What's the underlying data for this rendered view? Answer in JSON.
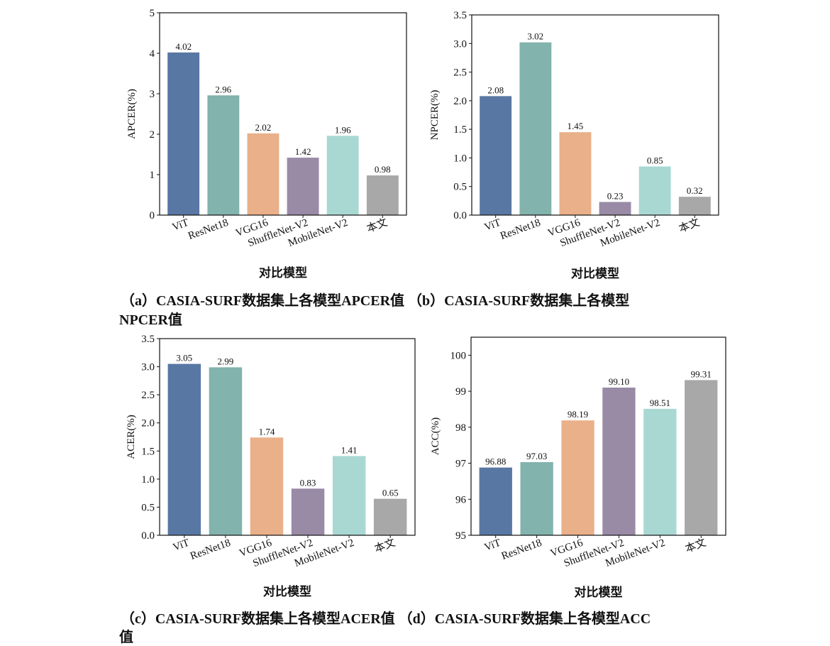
{
  "chart_data": [
    {
      "type": "bar",
      "categories": [
        "ViT",
        "ResNet18",
        "VGG16",
        "ShuffleNet-V2",
        "MobileNet-V2",
        "本文"
      ],
      "values": [
        4.02,
        2.96,
        2.02,
        1.42,
        1.96,
        0.98
      ],
      "value_labels": [
        "4.02",
        "2.96",
        "2.02",
        "1.42",
        "1.96",
        "0.98"
      ],
      "ylabel": "APCER(%)",
      "xlabel": "对比模型",
      "ylim": [
        0,
        5
      ],
      "yticks": [
        "0",
        "1",
        "2",
        "3",
        "4",
        "5"
      ],
      "grid": false
    },
    {
      "type": "bar",
      "categories": [
        "ViT",
        "ResNet18",
        "VGG16",
        "ShuffleNet-V2",
        "MobileNet-V2",
        "本文"
      ],
      "values": [
        2.08,
        3.02,
        1.45,
        0.23,
        0.85,
        0.32
      ],
      "value_labels": [
        "2.08",
        "3.02",
        "1.45",
        "0.23",
        "0.85",
        "0.32"
      ],
      "ylabel": "NPCER(%)",
      "xlabel": "对比模型",
      "ylim": [
        0,
        3.5
      ],
      "yticks": [
        "0.0",
        "0.5",
        "1.0",
        "1.5",
        "2.0",
        "2.5",
        "3.0",
        "3.5"
      ],
      "grid": false
    },
    {
      "type": "bar",
      "categories": [
        "ViT",
        "ResNet18",
        "VGG16",
        "ShuffleNet-V2",
        "MobileNet-V2",
        "本文"
      ],
      "values": [
        3.05,
        2.99,
        1.74,
        0.83,
        1.41,
        0.65
      ],
      "value_labels": [
        "3.05",
        "2.99",
        "1.74",
        "0.83",
        "1.41",
        "0.65"
      ],
      "ylabel": "ACER(%)",
      "xlabel": "对比模型",
      "ylim": [
        0,
        3.5
      ],
      "yticks": [
        "0.0",
        "0.5",
        "1.0",
        "1.5",
        "2.0",
        "2.5",
        "3.0",
        "3.5"
      ],
      "grid": false
    },
    {
      "type": "bar",
      "categories": [
        "ViT",
        "ResNet18",
        "VGG16",
        "ShuffleNet-V2",
        "MobileNet-V2",
        "本文"
      ],
      "values": [
        96.88,
        97.03,
        98.19,
        99.1,
        98.51,
        99.31
      ],
      "value_labels": [
        "96.88",
        "97.03",
        "98.19",
        "99.10",
        "98.51",
        "99.31"
      ],
      "ylabel": "ACC(%)",
      "xlabel": "对比模型",
      "ylim": [
        95,
        100.5
      ],
      "yticks": [
        "95",
        "96",
        "97",
        "98",
        "99",
        "100"
      ],
      "grid": false
    }
  ],
  "bar_colors": [
    "#5877a3",
    "#82b3ad",
    "#e9b089",
    "#998aa6",
    "#a9d8d3",
    "#a8a8a8"
  ],
  "captions": {
    "line1": "（a）CASIA-SURF数据集上各模型APCER值  （b）CASIA-SURF数据集上各模型",
    "line2": "NPCER值",
    "line3": "（c）CASIA-SURF数据集上各模型ACER值  （d）CASIA-SURF数据集上各模型ACC",
    "line4": "值"
  }
}
